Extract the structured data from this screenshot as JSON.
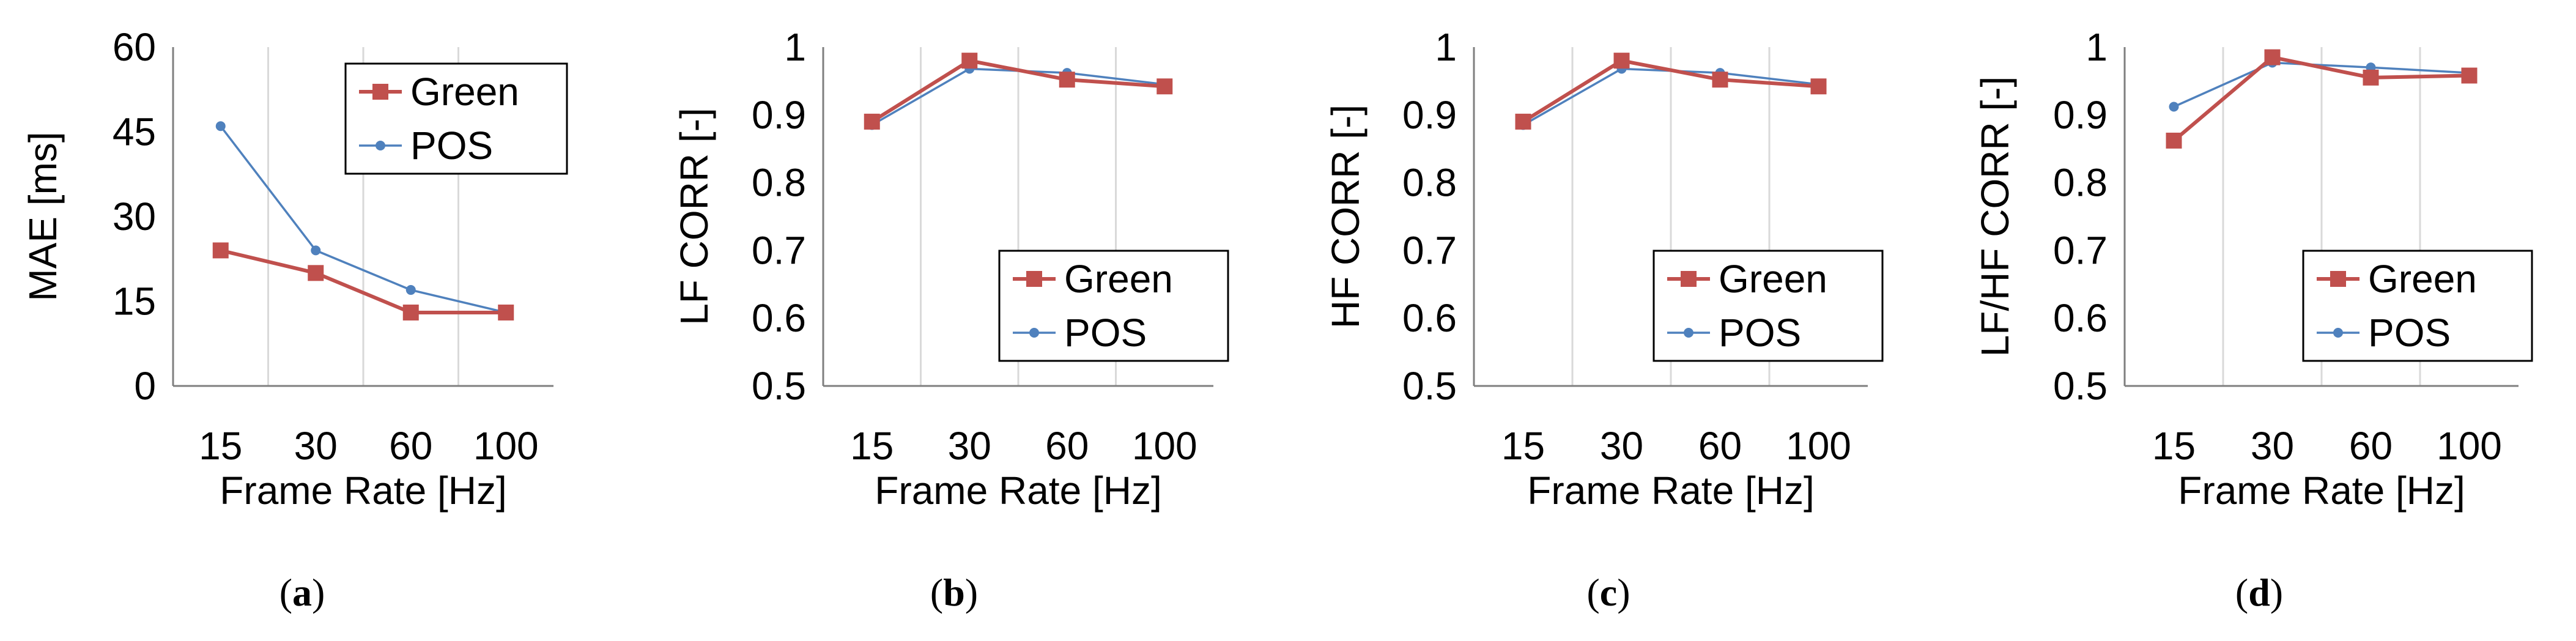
{
  "colors": {
    "green_series": "#C0504D",
    "pos_series": "#4F81BD",
    "axis": "#7F7F7F",
    "gridline": "#D9D9D9",
    "legend_border": "#000000",
    "text": "#000000"
  },
  "legend_labels": [
    "Green",
    "POS"
  ],
  "chart_data": [
    {
      "type": "line",
      "panel_label": "(a)",
      "panel_letter": "a",
      "title": "",
      "xlabel": "Frame Rate [Hz]",
      "ylabel": "MAE [ms]",
      "categories": [
        "15",
        "30",
        "60",
        "100"
      ],
      "ylim": [
        0,
        60
      ],
      "yticks": [
        "0",
        "15",
        "30",
        "45",
        "60"
      ],
      "grid": "vertical",
      "legend_position": "top-right",
      "series": [
        {
          "name": "Green",
          "marker": "square",
          "values": [
            24,
            20,
            13,
            13
          ]
        },
        {
          "name": "POS",
          "marker": "circle",
          "values": [
            46,
            24,
            17,
            13
          ]
        }
      ]
    },
    {
      "type": "line",
      "panel_label": "(b)",
      "panel_letter": "b",
      "title": "",
      "xlabel": "Frame Rate [Hz]",
      "ylabel": "LF CORR [-]",
      "categories": [
        "15",
        "30",
        "60",
        "100"
      ],
      "ylim": [
        0.5,
        1
      ],
      "yticks": [
        "0.5",
        "0.6",
        "0.7",
        "0.8",
        "0.9",
        "1"
      ],
      "grid": "vertical",
      "legend_position": "bottom-right",
      "series": [
        {
          "name": "Green",
          "marker": "square",
          "values": [
            0.89,
            0.98,
            0.952,
            0.942
          ]
        },
        {
          "name": "POS",
          "marker": "circle",
          "values": [
            0.885,
            0.968,
            0.962,
            0.945
          ]
        }
      ]
    },
    {
      "type": "line",
      "panel_label": "(c)",
      "panel_letter": "c",
      "title": "",
      "xlabel": "Frame Rate [Hz]",
      "ylabel": "HF CORR [-]",
      "categories": [
        "15",
        "30",
        "60",
        "100"
      ],
      "ylim": [
        0.5,
        1
      ],
      "yticks": [
        "0.5",
        "0.6",
        "0.7",
        "0.8",
        "0.9",
        "1"
      ],
      "grid": "vertical",
      "legend_position": "bottom-right",
      "series": [
        {
          "name": "Green",
          "marker": "square",
          "values": [
            0.89,
            0.98,
            0.952,
            0.942
          ]
        },
        {
          "name": "POS",
          "marker": "circle",
          "values": [
            0.885,
            0.968,
            0.962,
            0.945
          ]
        }
      ]
    },
    {
      "type": "line",
      "panel_label": "(d)",
      "panel_letter": "d",
      "title": "",
      "xlabel": "Frame Rate [Hz]",
      "ylabel": "LF/HF CORR [-]",
      "categories": [
        "15",
        "30",
        "60",
        "100"
      ],
      "ylim": [
        0.5,
        1
      ],
      "yticks": [
        "0.5",
        "0.6",
        "0.7",
        "0.8",
        "0.9",
        "1"
      ],
      "grid": "vertical",
      "legend_position": "bottom-right",
      "series": [
        {
          "name": "Green",
          "marker": "square",
          "values": [
            0.862,
            0.985,
            0.955,
            0.958
          ]
        },
        {
          "name": "POS",
          "marker": "circle",
          "values": [
            0.912,
            0.977,
            0.97,
            0.962
          ]
        }
      ]
    }
  ]
}
